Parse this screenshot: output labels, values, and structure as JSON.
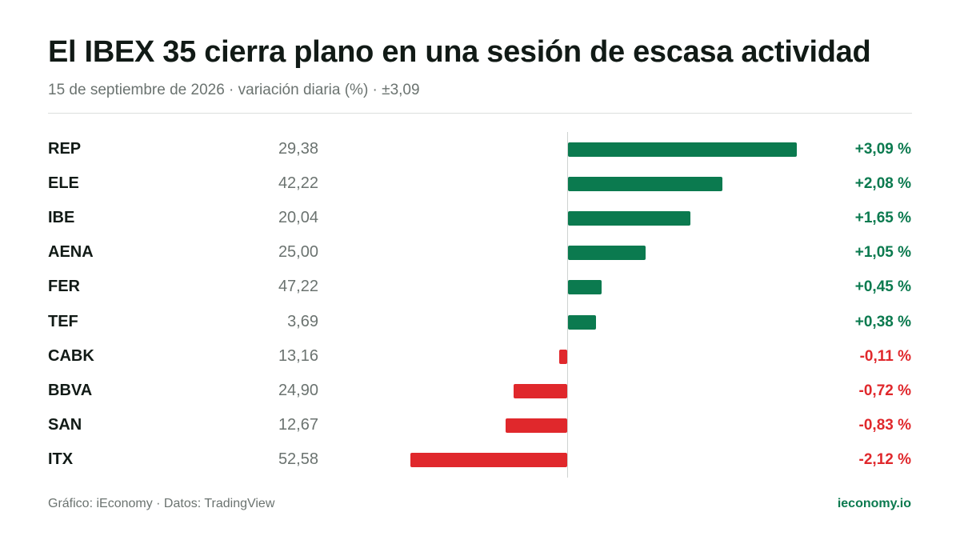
{
  "header": {
    "title": "El IBEX 35 cierra plano en una sesión de escasa actividad",
    "subtitle": "15 de septiembre de 2026 · variación diaria (%) · ±3,09"
  },
  "colors": {
    "positive": "#0b7a4f",
    "negative": "#e0282c"
  },
  "chart_data": {
    "type": "bar",
    "orientation": "horizontal",
    "title": "El IBEX 35 cierra plano en una sesión de escasa actividad",
    "subtitle": "15 de septiembre de 2026 · variación diaria (%) · ±3,09",
    "xlim": [
      -3.09,
      3.09
    ],
    "categories": [
      "REP",
      "ELE",
      "IBE",
      "AENA",
      "FER",
      "TEF",
      "CABK",
      "BBVA",
      "SAN",
      "ITX"
    ],
    "prices": [
      "29,38",
      "42,22",
      "20,04",
      "25,00",
      "47,22",
      "3,69",
      "13,16",
      "24,90",
      "12,67",
      "52,58"
    ],
    "values": [
      3.09,
      2.08,
      1.65,
      1.05,
      0.45,
      0.38,
      -0.11,
      -0.72,
      -0.83,
      -2.12
    ],
    "value_labels": [
      "+3,09 %",
      "+2,08 %",
      "+1,65 %",
      "+1,05 %",
      "+0,45 %",
      "+0,38 %",
      "-0,11 %",
      "-0,72 %",
      "-0,83 %",
      "-2,12 %"
    ],
    "grid": false,
    "legend": "none"
  },
  "footer": {
    "credit": "Gráfico: iEconomy · Datos: TradingView",
    "brand": "ieconomy.io"
  }
}
